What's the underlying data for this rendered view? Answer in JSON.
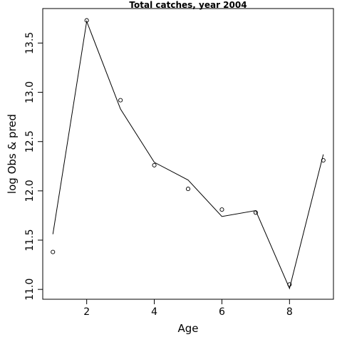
{
  "chart_data": {
    "type": "line",
    "title": "Total catches, year 2004",
    "xlabel": "Age",
    "ylabel": "log Obs & pred",
    "xlim": [
      0.7,
      9.3
    ],
    "ylim": [
      10.9,
      13.85
    ],
    "x_ticks": [
      2,
      4,
      6,
      8
    ],
    "y_ticks": [
      11.0,
      11.5,
      12.0,
      12.5,
      13.0,
      13.5
    ],
    "x_tick_labels": [
      "2",
      "4",
      "6",
      "8"
    ],
    "y_tick_labels": [
      "11.0",
      "11.5",
      "12.0",
      "12.5",
      "13.0",
      "13.5"
    ],
    "grid": false,
    "legend": "none",
    "series": [
      {
        "style": "points",
        "marker": "open-circle",
        "x": [
          1,
          2,
          3,
          4,
          5,
          6,
          7,
          8,
          9
        ],
        "y": [
          11.38,
          13.73,
          12.92,
          12.26,
          12.02,
          11.81,
          11.78,
          11.05,
          12.31
        ]
      },
      {
        "style": "line",
        "x": [
          1,
          2,
          3,
          4,
          5,
          6,
          7,
          8,
          9
        ],
        "y": [
          11.56,
          13.72,
          12.83,
          12.29,
          12.11,
          11.74,
          11.8,
          11.01,
          12.37
        ]
      }
    ]
  }
}
